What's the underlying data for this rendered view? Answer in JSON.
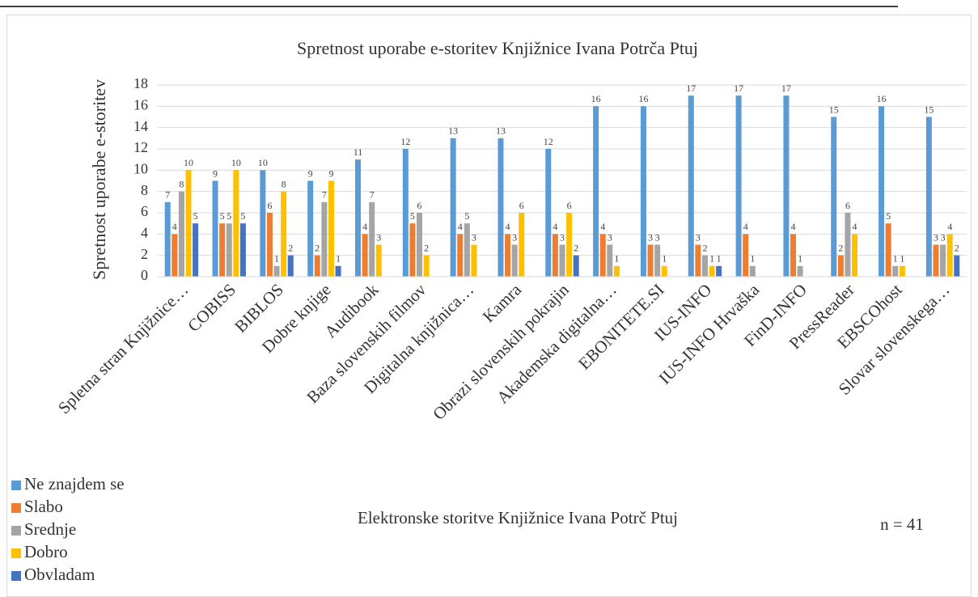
{
  "chart_data": {
    "type": "bar",
    "title": "Spretnost uporabe e-storitev Knjižnice Ivana Potrča Ptuj",
    "y_label": "Spretnost uporabe e-storitev",
    "x_label": "Elektronske storitve Knjižnice Ivana Potrč Ptuj",
    "annotation": "n = 41",
    "categories": [
      "Spletna stran Knjižnice…",
      "COBISS",
      "BIBLOS",
      "Dobre knjige",
      "Audibook",
      "Baza slovenskih filmov",
      "Digitalna knjižnica…",
      "Kamra",
      "Obrazi slovenskih pokrajin",
      "Akademska digitalna…",
      "EBONITETE.SI",
      "IUS-INFO",
      "IUS-INFO Hrvaška",
      "FinD-INFO",
      "PressReader",
      "EBSCOhost",
      "Slovar slovenskega…"
    ],
    "series": [
      {
        "name": "Ne znajdem se",
        "color": "#5b9bd5",
        "values": [
          7,
          9,
          10,
          9,
          11,
          12,
          13,
          13,
          12,
          16,
          16,
          17,
          17,
          17,
          15,
          16,
          15
        ]
      },
      {
        "name": "Slabo",
        "color": "#ed7d31",
        "values": [
          4,
          5,
          6,
          2,
          4,
          5,
          4,
          4,
          4,
          4,
          3,
          3,
          4,
          4,
          2,
          5,
          3
        ]
      },
      {
        "name": "Srednje",
        "color": "#a5a5a5",
        "values": [
          8,
          5,
          1,
          7,
          7,
          6,
          5,
          3,
          3,
          3,
          3,
          2,
          1,
          1,
          6,
          1,
          3
        ]
      },
      {
        "name": "Dobro",
        "color": "#ffc000",
        "values": [
          10,
          10,
          8,
          9,
          3,
          2,
          3,
          6,
          6,
          1,
          1,
          1,
          null,
          null,
          4,
          1,
          4
        ]
      },
      {
        "name": "Obvladam",
        "color": "#4472c4",
        "values": [
          5,
          5,
          2,
          1,
          null,
          null,
          null,
          null,
          2,
          null,
          null,
          1,
          null,
          null,
          null,
          null,
          2
        ]
      }
    ],
    "ylim": [
      0,
      18
    ],
    "yticks": [
      0,
      2,
      4,
      6,
      8,
      10,
      12,
      14,
      16,
      18
    ],
    "grid": true,
    "legend": "bottom-left"
  }
}
